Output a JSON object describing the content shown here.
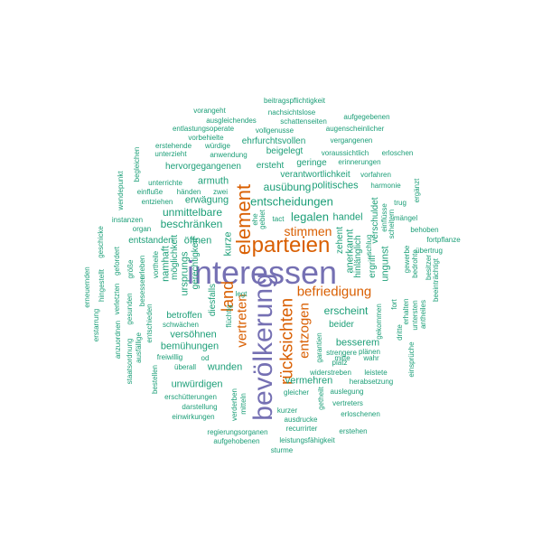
{
  "colors": {
    "large": "#7570b3",
    "medium": "#d95f02",
    "small": "#1b9e77"
  },
  "words": {
    "interessen": "interessen",
    "bevoelkerung": "bevölkerung",
    "parteien": "parteien",
    "element": "element",
    "ruecksichten": "rücksichten",
    "land": "land",
    "befriedigung": "befriedigung",
    "entzogen": "entzogen",
    "vertreten": "vertreten",
    "stimmen": "stimmen",
    "legalen": "legalen",
    "entscheidungen": "entscheidungen",
    "ausuebung": "ausübung",
    "politisches": "politisches",
    "beschraenken": "beschränken",
    "unmittelbare": "unmittelbare",
    "erwaegung": "erwägung",
    "armuth": "armuth",
    "erscheint": "erscheint",
    "vermehren": "vermehren",
    "besserem": "besserem",
    "beitragspflichtigkeit": "beitragspflichtigkeit",
    "nachsichtslose": "nachsichtslose",
    "vorangeht": "vorangeht",
    "ausgleichendes": "ausgleichendes",
    "schattenseiten": "schattenseiten",
    "aufgegebenen": "aufgegebenen",
    "augenscheinlicher": "augenscheinlicher",
    "entlastungsoperate": "entlastungsoperate",
    "vollgenusse": "vollgenusse",
    "vorbehielte": "vorbehielte",
    "ehrfurchtsvollen": "ehrfurchtsvollen",
    "vergangenen": "vergangenen",
    "erstehende": "erstehende",
    "wuerdige": "würdige",
    "beigelegt": "beigelegt",
    "voraussichtlich": "voraussichtlich",
    "erloschen": "erloschen",
    "unterzieht": "unterzieht",
    "anwendung": "anwendung",
    "erinnerungen": "erinnerungen",
    "hervorgegangenen": "hervorgegangenen",
    "ersteht": "ersteht",
    "geringe": "geringe",
    "verantwortlichkeit": "verantwortlichkeit",
    "vorfahren": "vorfahren",
    "harmonie": "harmonie",
    "unterrichte": "unterrichte",
    "einfluesse": "einfluße",
    "haenden": "händen",
    "zwei": "zwei",
    "trug": "trug",
    "entziehen": "entziehen",
    "instanzen": "instanzen",
    "tact": "tact",
    "handel": "handel",
    "einfluesse2": "einflüsse",
    "maengel": "mängel",
    "organ": "organ",
    "entstanden": "entstanden",
    "oeffnen": "öffnen",
    "scheitern": "scheitern",
    "behoben": "behoben",
    "fortpflanze": "fortpflanze",
    "zehent": "zehent",
    "anerkannt": "anerkannt",
    "hinlaenglich": "hinlänglich",
    "ergriff": "ergriff",
    "verschuldet": "verschuldet",
    "ungunst": "ungunst",
    "schlug": "schlug",
    "gewerbe": "gewerbe",
    "bedrohte": "bedrohte",
    "beeintraechtigt": "beeinträchtigt",
    "besitzer": "besitzer",
    "uebertrug": "übertrug",
    "betroffen": "betroffen",
    "versoehnen": "versöhnen",
    "bemuehungen": "bemühungen",
    "beider": "beider",
    "mitte": "mitte",
    "wahr": "wahr",
    "strengere": "strengere",
    "plaenen": "plänen",
    "platz": "platz",
    "garantien": "garantien",
    "freiwillig": "freiwillig",
    "od": "od",
    "ueberall": "überall",
    "wunden": "wunden",
    "unwuerdigen": "unwürdigen",
    "widerstreben": "widerstreben",
    "leistete": "leistete",
    "herabsetzung": "herabsetzung",
    "gleicher": "gleicher",
    "auslegung": "auslegung",
    "vertreters": "vertreters",
    "erloschenen": "erloschenen",
    "erschuetterungen": "erschütterungen",
    "darstellung": "darstellung",
    "einwirkungen": "einwirkungen",
    "kurzer": "kurzer",
    "ausdrucke": "ausdrucke",
    "recurrirter": "recurrirter",
    "erstehen": "erstehen",
    "regierungsorganen": "regierungsorganen",
    "aufgehobenen": "aufgehobenen",
    "leistungsfaehigkeit": "leistungsfähigkeit",
    "sturme": "sturme",
    "schwaechen": "schwächen",
    "unterzieht2": "möglichkeit",
    "ursprungs": "ursprungs",
    "gerechtigkeit": "gerechtigkeit",
    "namhaft": "namhaft",
    "kurze": "kurze",
    "diesfalls": "diesfalls",
    "fluechtig": "flüchtig",
    "legt": "legt",
    "verderben": "verderben",
    "mitteln": "mitteln",
    "bestellen": "bestellen",
    "ersteht2": "erleben",
    "gesunden": "gesunden",
    "besessen": "besessen",
    "entschieden": "entschieden",
    "vortheile": "vortheile",
    "groesse": "größe",
    "gefordert": "gefordert",
    "verletzten": "verletzten",
    "anzuordnen": "anzuordnen",
    "staatsordnung": "staatsordnung",
    "hingestellt": "hingestellt",
    "erneuernden": "erneuernden",
    "erstarrung": "erstarrung",
    "ausfaellige": "ausfällige",
    "wendepunkt": "wendepunkt",
    "geschicke": "geschicke",
    "begleichen": "begleichen",
    "gebiet": "gebiet",
    "ehe": "ehe",
    "gekommen": "gekommen",
    "fort": "fort",
    "dritte": "dritte",
    "erhalten": "erhalten",
    "unterste": "untersten",
    "antheiles": "antheiles",
    "einsprueche": "einsprüche",
    "ergaenzt": "ergänzt",
    "geistreich": "getheilt"
  }
}
